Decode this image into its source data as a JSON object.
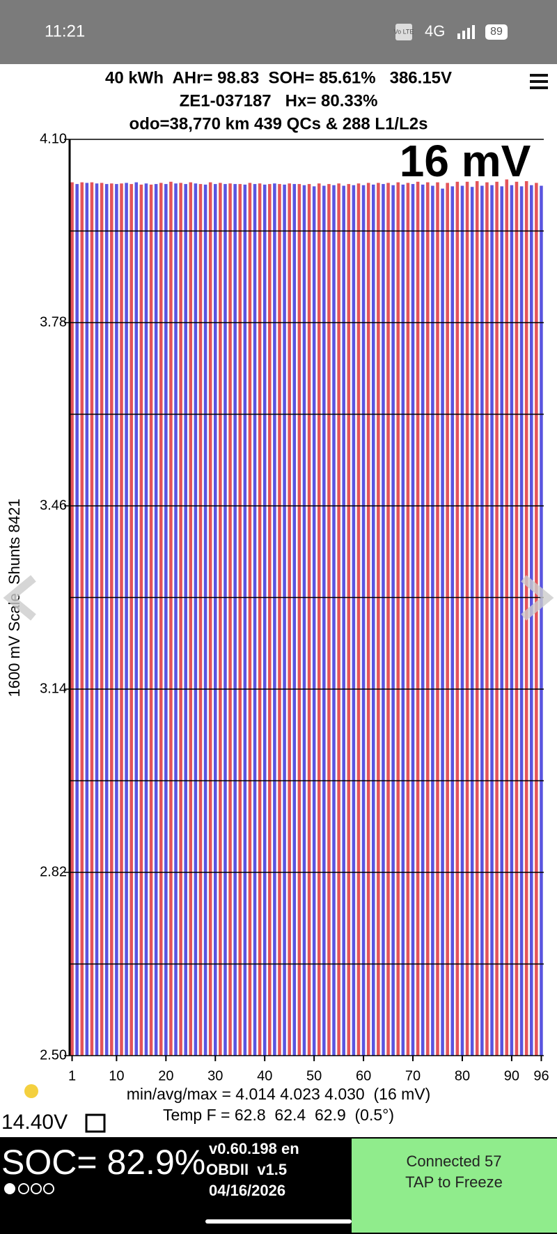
{
  "status_bar": {
    "time": "11:21",
    "volte": "Vo LTE",
    "network": "4G",
    "battery": "89"
  },
  "header": {
    "line1": "40 kWh  AHr= 98.83  SOH= 85.61%   386.15V",
    "line2": "ZE1-037187   Hx= 80.33%",
    "line3": "odo=38,770 km 439 QCs & 288 L1/L2s"
  },
  "chart_data": {
    "type": "bar",
    "annotation": "16 mV",
    "y_label": "1600 mV Scale  Shunts 8421",
    "categories": [
      "1",
      null,
      null,
      null,
      null,
      null,
      null,
      null,
      null,
      "10",
      null,
      null,
      null,
      null,
      null,
      null,
      null,
      null,
      null,
      "20",
      null,
      null,
      null,
      null,
      null,
      null,
      null,
      null,
      null,
      "30",
      null,
      null,
      null,
      null,
      null,
      null,
      null,
      null,
      null,
      "40",
      null,
      null,
      null,
      null,
      null,
      null,
      null,
      null,
      null,
      "50",
      null,
      null,
      null,
      null,
      null,
      null,
      null,
      null,
      null,
      "60",
      null,
      null,
      null,
      null,
      null,
      null,
      null,
      null,
      null,
      "70",
      null,
      null,
      null,
      null,
      null,
      null,
      null,
      null,
      null,
      "80",
      null,
      null,
      null,
      null,
      null,
      null,
      null,
      null,
      null,
      "90",
      null,
      null,
      null,
      null,
      null,
      "96"
    ],
    "values": [
      4.025,
      4.022,
      4.025,
      4.024,
      4.025,
      4.023,
      4.024,
      4.022,
      4.023,
      4.022,
      4.023,
      4.024,
      4.022,
      4.025,
      4.021,
      4.023,
      4.021,
      4.022,
      4.024,
      4.022,
      4.026,
      4.023,
      4.024,
      4.022,
      4.025,
      4.023,
      4.022,
      4.021,
      4.025,
      4.022,
      4.024,
      4.022,
      4.023,
      4.022,
      4.022,
      4.021,
      4.024,
      4.022,
      4.023,
      4.021,
      4.022,
      4.023,
      4.022,
      4.021,
      4.023,
      4.022,
      4.022,
      4.02,
      4.022,
      4.018,
      4.023,
      4.019,
      4.022,
      4.02,
      4.023,
      4.019,
      4.022,
      4.02,
      4.023,
      4.02,
      4.024,
      4.021,
      4.024,
      4.022,
      4.024,
      4.02,
      4.025,
      4.021,
      4.024,
      4.022,
      4.026,
      4.021,
      4.025,
      4.019,
      4.025,
      4.014,
      4.024,
      4.018,
      4.026,
      4.019,
      4.026,
      4.017,
      4.027,
      4.019,
      4.025,
      4.02,
      4.026,
      4.018,
      4.03,
      4.02,
      4.026,
      4.018,
      4.027,
      4.02,
      4.024,
      4.019
    ],
    "colors": [
      "#e4545a",
      "#5a55e0"
    ],
    "ylim": [
      2.5,
      4.1
    ],
    "yticks": [
      {
        "value": 4.1,
        "label": "4.10"
      },
      {
        "value": 3.78,
        "label": "3.78"
      },
      {
        "value": 3.46,
        "label": "3.46"
      },
      {
        "value": 3.14,
        "label": "3.14"
      },
      {
        "value": 2.82,
        "label": "2.82"
      },
      {
        "value": 2.5,
        "label": "2.50"
      }
    ],
    "ygrid": [
      3.94,
      3.62,
      3.3,
      2.98,
      2.66
    ],
    "grid": true
  },
  "stats": {
    "minmax": "min/avg/max = 4.014 4.023 4.030  (16 mV)",
    "temp": "Temp F = 62.8  62.4  62.9  (0.5°)",
    "voltage": "14.40V"
  },
  "footer": {
    "soc": "SOC= 82.9%",
    "version": "v0.60.198 en",
    "obd": "OBDII  v1.5",
    "date": "04/16/2026",
    "connected": "Connected 57",
    "tap": "TAP to Freeze"
  }
}
